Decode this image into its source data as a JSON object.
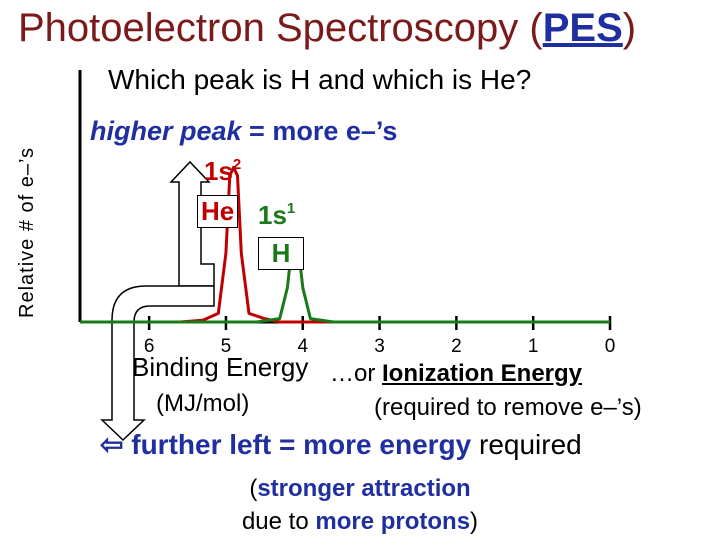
{
  "title": {
    "main": "Photoelectron Spectroscopy (",
    "abbr": "PES",
    "close": ")"
  },
  "question": "Which peak is H and which is He?",
  "higher_peak": {
    "emph": "higher peak",
    "rest": " = more e–’s"
  },
  "peak_labels": {
    "he_config": "1s",
    "he_config_sup": "2",
    "he_name": "He",
    "h_config": "1s",
    "h_config_sup": "1",
    "h_name": "H"
  },
  "binding_energy": "Binding Energy",
  "units": "(MJ/mol)",
  "ionization": {
    "prefix": "…or ",
    "bold": "Ionization Energy"
  },
  "required_remove": "(required to remove e–’s)",
  "further": {
    "arrow": "⇦",
    "emph": "further left = more energy",
    "rest": " required"
  },
  "attraction": {
    "p1": "(",
    "b1": "stronger attraction",
    "p2": " due to ",
    "b2": "more protons",
    "p3": ")"
  },
  "colors": {
    "title": "#7a1a1a",
    "blue": "#1f2fa0",
    "red_series": "#c00000",
    "green_series": "#1a7a1a"
  },
  "chart_data": {
    "type": "line",
    "ylabel": "Relative # of e–’s",
    "xlabel": "Binding Energy",
    "xlim": [
      6.9,
      0
    ],
    "x_reversed": true,
    "x_ticks": [
      "6",
      "5",
      "4",
      "3",
      "2",
      "1",
      "0"
    ],
    "ylim": [
      0,
      1
    ],
    "series": [
      {
        "color": "#c00000",
        "x": [
          6.9,
          6.5,
          6.0,
          5.6,
          5.3,
          5.1,
          5.0,
          4.95,
          4.9,
          4.85,
          4.8,
          4.7,
          4.5,
          4.3,
          4.0,
          3.7,
          3.5
        ],
        "y": [
          0.0,
          0.0,
          0.0,
          0.0,
          0.01,
          0.05,
          0.4,
          0.85,
          0.9,
          0.85,
          0.4,
          0.05,
          0.02,
          0.0,
          0.0,
          0.0,
          0.0
        ]
      },
      {
        "color": "#1a7a1a",
        "x": [
          6.9,
          6.3,
          5.8,
          5.3,
          5.0,
          4.6,
          4.3,
          4.2,
          4.15,
          4.1,
          4.05,
          4.0,
          3.9,
          3.6,
          3.0,
          2.0,
          1.0,
          0.0
        ],
        "y": [
          0.0,
          0.0,
          0.0,
          0.0,
          0.0,
          0.0,
          0.02,
          0.2,
          0.4,
          0.42,
          0.4,
          0.2,
          0.02,
          0.0,
          0.0,
          0.0,
          0.0,
          0.0
        ]
      }
    ]
  }
}
